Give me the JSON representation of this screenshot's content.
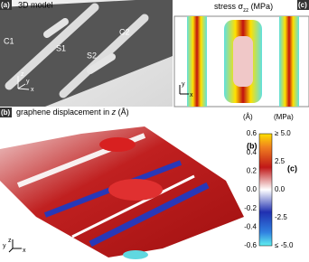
{
  "panel_a": {
    "label": "(a)",
    "title": "3D model",
    "parts": [
      "C1",
      "S1",
      "S2",
      "C2"
    ],
    "axes": [
      "z",
      "y",
      "x"
    ]
  },
  "panel_c": {
    "label": "(c)",
    "title": {
      "prefix": "stress σ",
      "sub": "zz",
      "suffix": " (MPa)"
    },
    "axes": [
      "y",
      "x"
    ]
  },
  "panel_b": {
    "label": "(b)",
    "title": {
      "prefix": "graphene displacement in ",
      "var": "z",
      "suffix": " (Å)"
    },
    "axes": [
      "y",
      "z",
      "x"
    ]
  },
  "colorbar": {
    "left_unit": "(Å)",
    "right_unit": "(MPa)",
    "left_ticks": [
      "0.6",
      "0.4",
      "0.2",
      "0.0",
      "-0.2",
      "-0.4",
      "-0.6"
    ],
    "right_ticks": [
      "≥ 5.0",
      "2.5",
      "0.0",
      "-2.5",
      "≤ -5.0"
    ],
    "left_tag": "(b)",
    "right_tag": "(c)"
  }
}
